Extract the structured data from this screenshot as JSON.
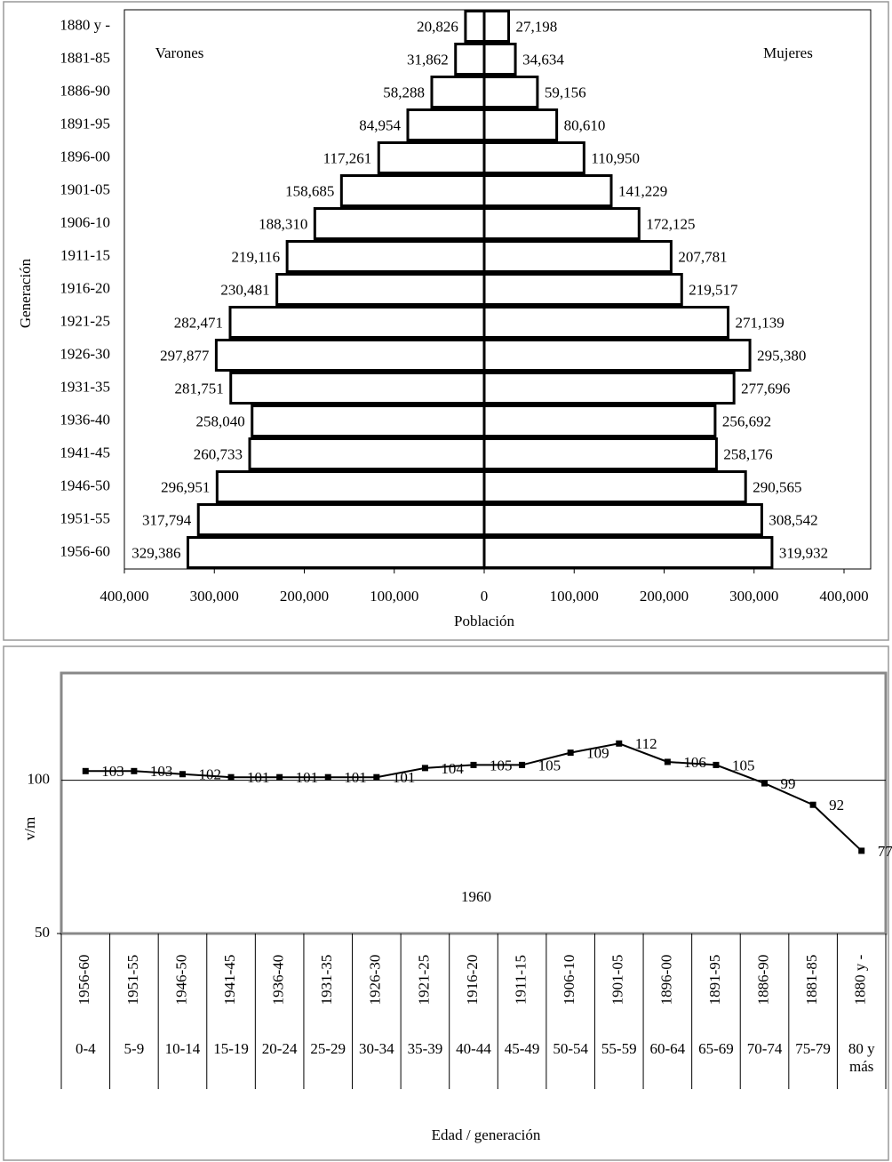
{
  "chart_data": [
    {
      "type": "pyramid",
      "ylabel": "Generación",
      "xlabel": "Población",
      "categories": [
        "1880 y -",
        "1881-85",
        "1886-90",
        "1891-95",
        "1896-00",
        "1901-05",
        "1906-10",
        "1911-15",
        "1916-20",
        "1921-25",
        "1926-30",
        "1931-35",
        "1936-40",
        "1941-45",
        "1946-50",
        "1951-55",
        "1956-60"
      ],
      "series": [
        {
          "name": "Varones",
          "color": "#ffffff",
          "values": [
            20826,
            31862,
            58288,
            84954,
            117261,
            158685,
            188310,
            219116,
            230481,
            282471,
            297877,
            281751,
            258040,
            260733,
            296951,
            317794,
            329386
          ],
          "value_labels": [
            "20,826",
            "31,862",
            "58,288",
            "84,954",
            "117,261",
            "158,685",
            "188,310",
            "219,116",
            "230,481",
            "282,471",
            "297,877",
            "281,751",
            "258,040",
            "260,733",
            "296,951",
            "317,794",
            "329,386"
          ]
        },
        {
          "name": "Mujeres",
          "color": "#ffffff",
          "values": [
            27198,
            34634,
            59156,
            80610,
            110950,
            141229,
            172125,
            207781,
            219517,
            271139,
            295380,
            277696,
            256692,
            258176,
            290565,
            308542,
            319932
          ],
          "value_labels": [
            "27,198",
            "34,634",
            "59,156",
            "80,610",
            "110,950",
            "141,229",
            "172,125",
            "207,781",
            "219,517",
            "271,139",
            "295,380",
            "277,696",
            "256,692",
            "258,176",
            "290,565",
            "308,542",
            "319,932"
          ]
        }
      ],
      "xlim": [
        -400000,
        400000
      ],
      "xticks": [
        {
          "value": -400000,
          "label": "400,000"
        },
        {
          "value": -300000,
          "label": "300,000"
        },
        {
          "value": -200000,
          "label": "200,000"
        },
        {
          "value": -100000,
          "label": "100,000"
        },
        0,
        {
          "value": 100000,
          "label": "100,000"
        },
        {
          "value": 200000,
          "label": "200,000"
        },
        {
          "value": 300000,
          "label": "300,000"
        },
        {
          "value": 400000,
          "label": "400,000"
        }
      ]
    },
    {
      "type": "line",
      "ylabel": "v/m",
      "xlabel": "Edad / generación",
      "annotation": "1960",
      "categories": [
        "1956-60",
        "1951-55",
        "1946-50",
        "1941-45",
        "1936-40",
        "1931-35",
        "1926-30",
        "1921-25",
        "1916-20",
        "1911-15",
        "1906-10",
        "1901-05",
        "1896-00",
        "1891-95",
        "1886-90",
        "1881-85",
        "1880 y -"
      ],
      "categories2": [
        "0-4",
        "5-9",
        "10-14",
        "15-19",
        "20-24",
        "25-29",
        "30-34",
        "35-39",
        "40-44",
        "45-49",
        "50-54",
        "55-59",
        "60-64",
        "65-69",
        "70-74",
        "75-79",
        "80 y más"
      ],
      "values": [
        103,
        103,
        102,
        101,
        101,
        101,
        101,
        104,
        105,
        105,
        109,
        112,
        106,
        105,
        99,
        92,
        77
      ],
      "color": "#000000",
      "ylim": [
        50,
        135
      ],
      "yticks": [
        50,
        100
      ],
      "grid": true
    }
  ]
}
